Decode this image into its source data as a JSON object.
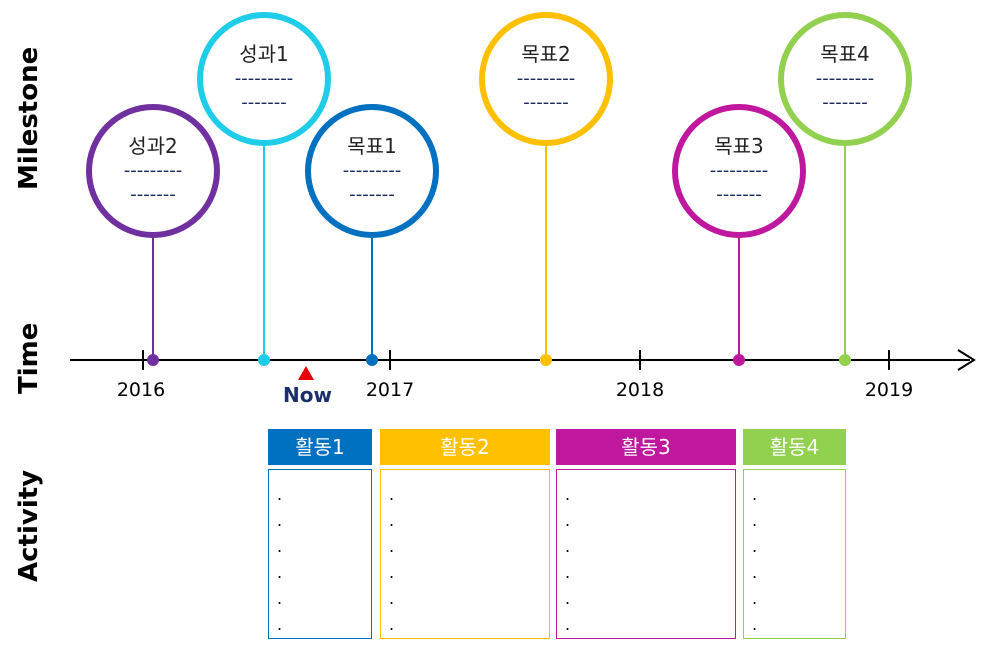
{
  "labels": {
    "milestone": "Milestone",
    "time": "Time",
    "activity": "Activity",
    "now": "Now"
  },
  "years": [
    "2016",
    "2017",
    "2018",
    "2019"
  ],
  "colors": {
    "purple": "#7030a0",
    "cyan": "#1fcde9",
    "blue": "#0070c0",
    "yellow": "#ffc000",
    "magenta": "#c0179f",
    "green": "#92d050",
    "now_marker": "#e8000b"
  },
  "milestones": [
    {
      "title": "성과2",
      "line1": "---------",
      "line2": "-------",
      "color": "#7030a0"
    },
    {
      "title": "성과1",
      "line1": "---------",
      "line2": "-------",
      "color": "#1fcde9"
    },
    {
      "title": "목표1",
      "line1": "---------",
      "line2": "-------",
      "color": "#0070c0"
    },
    {
      "title": "목표2",
      "line1": "---------",
      "line2": "-------",
      "color": "#ffc000"
    },
    {
      "title": "목표3",
      "line1": "---------",
      "line2": "-------",
      "color": "#c0179f"
    },
    {
      "title": "목표4",
      "line1": "---------",
      "line2": "-------",
      "color": "#92d050"
    }
  ],
  "activities": [
    {
      "title": "활동1",
      "color": "#0070c0",
      "bullets": [
        ".",
        ".",
        ".",
        ".",
        ".",
        "."
      ]
    },
    {
      "title": "활동2",
      "color": "#ffc000",
      "bullets": [
        ".",
        ".",
        ".",
        ".",
        ".",
        "."
      ]
    },
    {
      "title": "활동3",
      "color": "#c0179f",
      "bullets": [
        ".",
        ".",
        ".",
        ".",
        ".",
        "."
      ]
    },
    {
      "title": "활동4",
      "color": "#92d050",
      "bullets": [
        ".",
        ".",
        ".",
        ".",
        ".",
        "."
      ]
    }
  ]
}
